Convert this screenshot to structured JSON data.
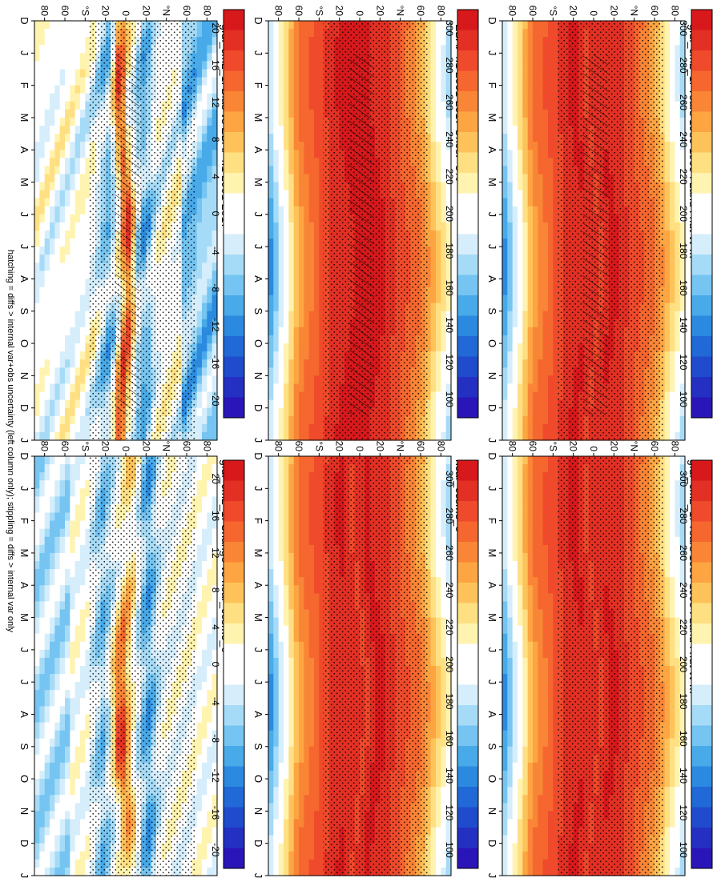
{
  "figure": {
    "footer": "hatching = diffs > internal var+obs uncertainty (left column only); stippling = diffs > internal var only",
    "orientation": "rotated 90 degrees clockwise"
  },
  "palettes": {
    "absolute": {
      "labels": [
        "300",
        "280",
        "260",
        "240",
        "220",
        "200",
        "180",
        "160",
        "140",
        "120",
        "100"
      ],
      "colors": [
        "#d7191c",
        "#e33024",
        "#ee4a2b",
        "#f5672f",
        "#f98637",
        "#fca542",
        "#fdc35a",
        "#fee083",
        "#fff3b0",
        "#ffffff",
        "#ffffff",
        "#d6eefb",
        "#a6dbf7",
        "#75c4f1",
        "#48aae9",
        "#2b8ae0",
        "#2169d6",
        "#1f4bcc",
        "#2430c2",
        "#2a16b8"
      ]
    },
    "difference": {
      "labels": [
        "20",
        "16",
        "12",
        "8",
        "4",
        "0",
        "-4",
        "-8",
        "-12",
        "-16",
        "-20"
      ],
      "colors": [
        "#d7191c",
        "#e33024",
        "#ee4a2b",
        "#f5672f",
        "#f98637",
        "#fca542",
        "#fdc35a",
        "#fee083",
        "#fff3b0",
        "#ffffff",
        "#ffffff",
        "#d6eefb",
        "#a6dbf7",
        "#75c4f1",
        "#48aae9",
        "#2b8ae0",
        "#2169d6",
        "#1f4bcc",
        "#2430c2",
        "#2a16b8"
      ]
    }
  },
  "chart_data": [
    {
      "type": "heatmap",
      "id": "model-absolute-left",
      "title": "gfdl_cm2_1: Years 1980-1999 : Land : rlut W m",
      "title_sup": "-2",
      "x": [
        "D",
        "J",
        "F",
        "M",
        "A",
        "M",
        "J",
        "J",
        "A",
        "S",
        "O",
        "N",
        "D",
        "J"
      ],
      "y_ticks": [
        "80",
        "60",
        "°N",
        "20",
        "0",
        "20",
        "°S",
        "60",
        "80"
      ],
      "ylim": [
        -90,
        90
      ],
      "units": "W m-2",
      "palette": "absolute",
      "kind": "absolute",
      "hatching": true,
      "stippling": true
    },
    {
      "type": "heatmap",
      "id": "obs-absolute",
      "title": "EBAF4.1 2001-2017 Uncer=5%",
      "x": [
        "D",
        "J",
        "F",
        "M",
        "A",
        "M",
        "J",
        "J",
        "A",
        "S",
        "O",
        "N",
        "D",
        "J"
      ],
      "y_ticks": [
        "80",
        "60",
        "°N",
        "20",
        "0",
        "20",
        "°S",
        "60",
        "80"
      ],
      "ylim": [
        -90,
        90
      ],
      "units": "W m-2",
      "palette": "absolute",
      "kind": "obs",
      "hatching": true,
      "stippling": true
    },
    {
      "type": "heatmap",
      "id": "bias-vs-obs",
      "title": "gfdl_cm2_1: Bias vs EBAF4.1 2001-2017",
      "x": [
        "D",
        "J",
        "F",
        "M",
        "A",
        "M",
        "J",
        "J",
        "A",
        "S",
        "O",
        "N",
        "D",
        "J"
      ],
      "y_ticks": [
        "80",
        "60",
        "°N",
        "20",
        "0",
        "20",
        "°S",
        "60",
        "80"
      ],
      "ylim": [
        -90,
        90
      ],
      "units": "W m-2",
      "palette": "difference",
      "kind": "bias",
      "hatching": true,
      "stippling": true
    },
    {
      "type": "heatmap",
      "id": "model-absolute-right",
      "title": "gfdl_cm2_1: Years 1980-1999 : Land : rlut W m",
      "title_sup": "-2",
      "x": [
        "D",
        "J",
        "F",
        "M",
        "A",
        "M",
        "J",
        "J",
        "A",
        "S",
        "O",
        "N",
        "D",
        "J"
      ],
      "y_ticks": [
        "80",
        "60",
        "°N",
        "20",
        "0",
        "20",
        "°S",
        "60",
        "80"
      ],
      "ylim": [
        -90,
        90
      ],
      "units": "W m-2",
      "palette": "absolute",
      "kind": "absolute",
      "hatching": false,
      "stippling": true
    },
    {
      "type": "heatmap",
      "id": "ref-model-absolute",
      "title": "ncar_ccsm3_0",
      "x": [
        "D",
        "J",
        "F",
        "M",
        "A",
        "M",
        "J",
        "J",
        "A",
        "S",
        "O",
        "N",
        "D",
        "J"
      ],
      "y_ticks": [
        "80",
        "60",
        "°N",
        "20",
        "0",
        "20",
        "°S",
        "60",
        "80"
      ],
      "ylim": [
        -90,
        90
      ],
      "units": "W m-2",
      "palette": "absolute",
      "kind": "absolute2",
      "hatching": false,
      "stippling": true
    },
    {
      "type": "heatmap",
      "id": "change-vs-ref",
      "title": "gfdl_cm2_1: Change vs ncar_ccsm3_0",
      "x": [
        "D",
        "J",
        "F",
        "M",
        "A",
        "M",
        "J",
        "J",
        "A",
        "S",
        "O",
        "N",
        "D",
        "J"
      ],
      "y_ticks": [
        "80",
        "60",
        "°N",
        "20",
        "0",
        "20",
        "°S",
        "60",
        "80"
      ],
      "ylim": [
        -90,
        90
      ],
      "units": "W m-2",
      "palette": "difference",
      "kind": "change",
      "hatching": false,
      "stippling": true
    }
  ]
}
